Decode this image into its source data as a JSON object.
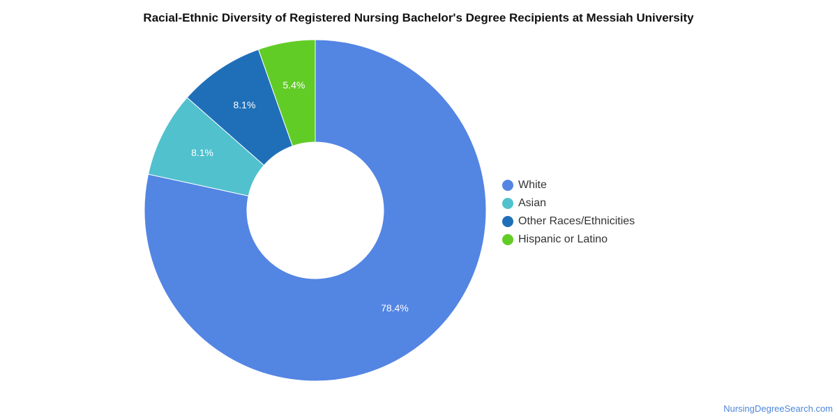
{
  "chart_data": {
    "type": "pie",
    "title": "Racial-Ethnic Diversity of Registered Nursing Bachelor's Degree Recipients at Messiah University",
    "donut": true,
    "legend_position": "right",
    "slices": [
      {
        "label": "White",
        "value": 78.4,
        "display": "78.4%",
        "color": "#5385e3"
      },
      {
        "label": "Asian",
        "value": 8.1,
        "display": "8.1%",
        "color": "#51c1ce"
      },
      {
        "label": "Other Races/Ethnicities",
        "value": 8.1,
        "display": "8.1%",
        "color": "#1f6fb8"
      },
      {
        "label": "Hispanic or Latino",
        "value": 5.4,
        "display": "5.4%",
        "color": "#62cc27"
      }
    ]
  },
  "footer": {
    "credit": "NursingDegreeSearch.com"
  }
}
